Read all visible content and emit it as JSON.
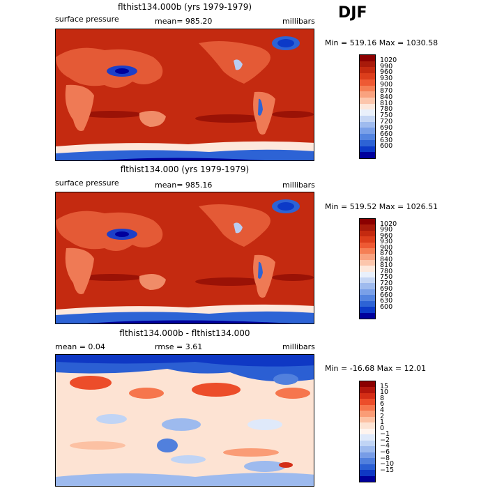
{
  "season": "DJF",
  "panels": [
    {
      "title": "flthist134.000b (yrs 1979-1979)",
      "left_label": "surface pressure",
      "center_label": "mean= 985.20",
      "right_label": "millibars",
      "stats": "Min = 519.16 Max = 1030.58",
      "colorbar": {
        "labels": [
          "1020",
          "990",
          "960",
          "930",
          "900",
          "870",
          "840",
          "810",
          "780",
          "750",
          "720",
          "690",
          "660",
          "630",
          "600"
        ],
        "colors": [
          "#8b0000",
          "#a81a0a",
          "#c42a10",
          "#dc3e1c",
          "#ee5a34",
          "#f57f55",
          "#f9a27f",
          "#fcc6ac",
          "#fde8dc",
          "#e9f0fb",
          "#c5d6f4",
          "#9fbbee",
          "#7aa0e8",
          "#5484e0",
          "#2d63d5",
          "#0c3ac8",
          "#00009c"
        ]
      }
    },
    {
      "title": "flthist134.000 (yrs 1979-1979)",
      "left_label": "surface pressure",
      "center_label": "mean= 985.16",
      "right_label": "millibars",
      "stats": "Min = 519.52 Max = 1026.51",
      "colorbar": {
        "labels": [
          "1020",
          "990",
          "960",
          "930",
          "900",
          "870",
          "840",
          "810",
          "780",
          "750",
          "720",
          "690",
          "660",
          "630",
          "600"
        ],
        "colors": [
          "#8b0000",
          "#a81a0a",
          "#c42a10",
          "#dc3e1c",
          "#ee5a34",
          "#f57f55",
          "#f9a27f",
          "#fcc6ac",
          "#fde8dc",
          "#e9f0fb",
          "#c5d6f4",
          "#9fbbee",
          "#7aa0e8",
          "#5484e0",
          "#2d63d5",
          "#0c3ac8",
          "#00009c"
        ]
      }
    },
    {
      "title": "flthist134.000b - flthist134.000",
      "left_label": "mean =    0.04",
      "center_label": "rmse =    3.61",
      "right_label": "millibars",
      "stats": "Min = -16.68 Max =   12.01",
      "colorbar": {
        "labels": [
          "15",
          "10",
          "8",
          "6",
          "4",
          "2",
          "1",
          "0",
          "−1",
          "−2",
          "−4",
          "−6",
          "−8",
          "−10",
          "−15"
        ],
        "colors": [
          "#8b0000",
          "#b3160c",
          "#d42e16",
          "#ec4d2a",
          "#f6764d",
          "#fa9c76",
          "#fcc1a3",
          "#fde3d3",
          "#fff4ee",
          "#dfe9fa",
          "#c0d4f5",
          "#9dbaee",
          "#779ce6",
          "#5180dd",
          "#2b5fd3",
          "#0f38c4",
          "#00009a"
        ]
      }
    }
  ]
}
